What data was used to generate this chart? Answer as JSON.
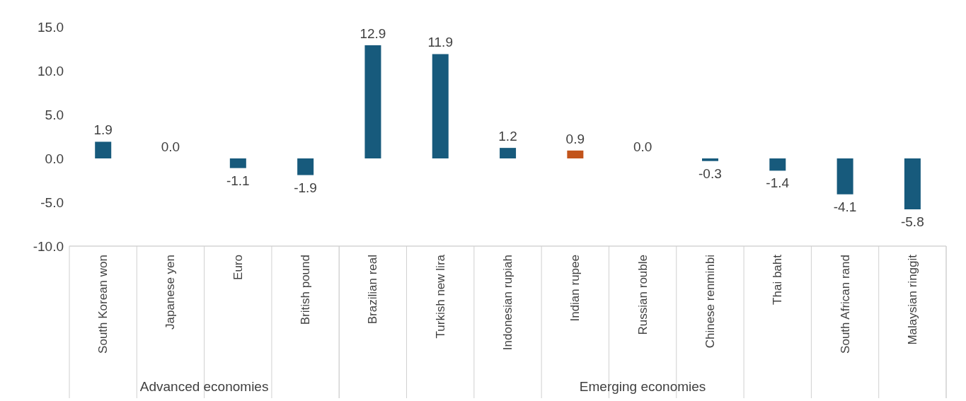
{
  "chart_data": {
    "type": "bar",
    "categories": [
      "South Korean won",
      "Japanese yen",
      "Euro",
      "British pound",
      "Brazilian real",
      "Turkish new lira",
      "Indonesian rupiah",
      "Indian rupee",
      "Russian rouble",
      "Chinese renminbi",
      "Thai baht",
      "South African rand",
      "Malaysian ringgit"
    ],
    "values": [
      1.9,
      0,
      -1.1,
      -1.9,
      12.9,
      11.9,
      1.2,
      0.9,
      0,
      -0.3,
      -1.4,
      -4.1,
      -5.8
    ],
    "colors": [
      "#175a7c",
      "#175a7c",
      "#175a7c",
      "#175a7c",
      "#175a7c",
      "#175a7c",
      "#175a7c",
      "#c2541b",
      "#175a7c",
      "#175a7c",
      "#175a7c",
      "#175a7c",
      "#175a7c"
    ],
    "value_labels": [
      "1.9",
      "0.0",
      "-1.1",
      "-1.9",
      "12.9",
      "11.9",
      "1.2",
      "0.9",
      "0.0",
      "-0.3",
      "-1.4",
      "-4.1",
      "-5.8"
    ],
    "ylim": [
      -10,
      15
    ],
    "yticks": [
      {
        "value": -10,
        "label": "-10.0"
      },
      {
        "value": -5,
        "label": "-5.0"
      },
      {
        "value": 0,
        "label": "0.0"
      },
      {
        "value": 5,
        "label": "5.0"
      },
      {
        "value": 10,
        "label": "10.0"
      },
      {
        "value": 15,
        "label": "15.0"
      }
    ],
    "grid": false,
    "legend": false,
    "annotations": [
      "Advanced economies",
      "Emerging economies"
    ]
  }
}
